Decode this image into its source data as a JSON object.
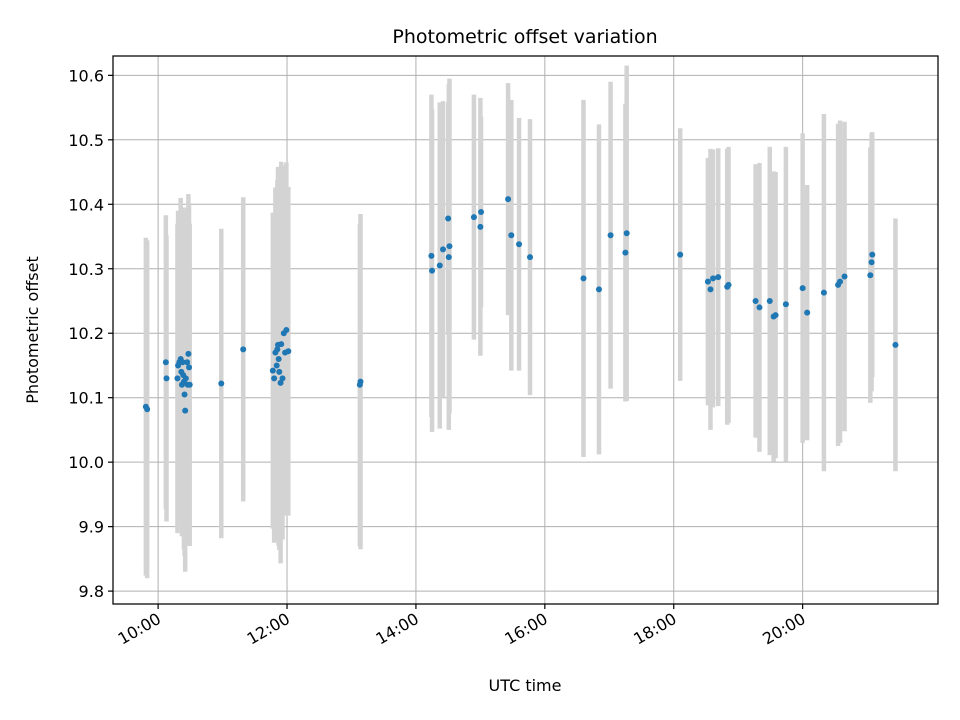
{
  "chart_data": {
    "type": "scatter",
    "title": "Photometric offset variation",
    "xlabel": "UTC time",
    "ylabel": "Photometric offset",
    "x_ticks": [
      "10:00",
      "12:00",
      "14:00",
      "16:00",
      "18:00",
      "20:00"
    ],
    "x_tick_hours": [
      10,
      12,
      14,
      16,
      18,
      20
    ],
    "xlim_hours": [
      9.3,
      22.1
    ],
    "y_ticks": [
      "9.8",
      "9.9",
      "10.0",
      "10.1",
      "10.2",
      "10.3",
      "10.4",
      "10.5",
      "10.6"
    ],
    "ylim": [
      9.78,
      10.63
    ],
    "grid": true,
    "point_color": "#1f77b4",
    "errorbar_color": "#d3d3d3",
    "series": [
      {
        "x_hours": [
          9.81,
          9.83,
          10.12,
          10.13,
          10.3,
          10.31,
          10.33,
          10.35,
          10.36,
          10.37,
          10.38,
          10.39,
          10.4,
          10.41,
          10.42,
          10.43,
          10.45,
          10.46,
          10.47,
          10.48,
          10.49,
          10.98,
          11.32,
          11.78,
          11.8,
          11.82,
          11.84,
          11.85,
          11.86,
          11.87,
          11.88,
          11.9,
          11.91,
          11.93,
          11.95,
          11.97,
          11.99,
          12.02,
          13.13,
          13.14,
          14.24,
          14.25,
          14.37,
          14.42,
          14.5,
          14.51,
          14.52,
          14.9,
          15.0,
          15.01,
          15.43,
          15.48,
          15.6,
          15.77,
          16.6,
          16.84,
          17.02,
          17.25,
          17.27,
          18.1,
          18.53,
          18.57,
          18.61,
          18.69,
          18.83,
          18.85,
          19.27,
          19.33,
          19.49,
          19.55,
          19.58,
          19.74,
          20.0,
          20.07,
          20.33,
          20.55,
          20.58,
          20.65,
          21.05,
          21.07,
          21.08,
          21.44
        ],
        "y": [
          10.086,
          10.082,
          10.155,
          10.13,
          10.13,
          10.15,
          10.155,
          10.16,
          10.14,
          10.12,
          10.155,
          10.135,
          10.125,
          10.105,
          10.08,
          10.13,
          10.155,
          10.12,
          10.168,
          10.147,
          10.12,
          10.122,
          10.175,
          10.142,
          10.13,
          10.17,
          10.15,
          10.175,
          10.182,
          10.16,
          10.14,
          10.123,
          10.183,
          10.13,
          10.2,
          10.17,
          10.205,
          10.172,
          10.12,
          10.125,
          10.32,
          10.297,
          10.305,
          10.33,
          10.378,
          10.318,
          10.335,
          10.38,
          10.365,
          10.388,
          10.408,
          10.352,
          10.338,
          10.318,
          10.285,
          10.268,
          10.352,
          10.325,
          10.355,
          10.322,
          10.28,
          10.268,
          10.285,
          10.287,
          10.272,
          10.275,
          10.25,
          10.24,
          10.25,
          10.226,
          10.228,
          10.245,
          10.27,
          10.232,
          10.263,
          10.275,
          10.28,
          10.288,
          10.29,
          10.31,
          10.322,
          10.182
        ],
        "yerr": [
          0.262,
          0.262,
          0.228,
          0.222,
          0.24,
          0.24,
          0.23,
          0.25,
          0.23,
          0.235,
          0.24,
          0.25,
          0.26,
          0.25,
          0.25,
          0.26,
          0.24,
          0.245,
          0.248,
          0.255,
          0.25,
          0.24,
          0.236,
          0.245,
          0.255,
          0.256,
          0.27,
          0.262,
          0.276,
          0.29,
          0.276,
          0.28,
          0.283,
          0.25,
          0.26,
          0.253,
          0.26,
          0.255,
          0.25,
          0.26,
          0.25,
          0.25,
          0.253,
          0.23,
          0.18,
          0.268,
          0.26,
          0.19,
          0.2,
          0.148,
          0.18,
          0.21,
          0.196,
          0.214,
          0.277,
          0.256,
          0.238,
          0.231,
          0.26,
          0.196,
          0.192,
          0.218,
          0.2,
          0.2,
          0.214,
          0.214,
          0.212,
          0.224,
          0.239,
          0.225,
          0.222,
          0.244,
          0.24,
          0.198,
          0.277,
          0.25,
          0.25,
          0.24,
          0.198,
          0.2,
          0.19,
          0.196
        ]
      }
    ]
  }
}
